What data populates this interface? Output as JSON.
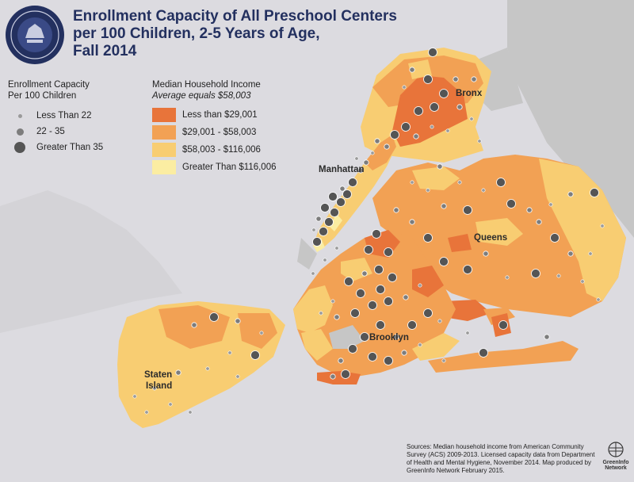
{
  "title_lines": [
    "Enrollment Capacity of All Preschool Centers",
    "per 100 Children, 2-5 Years of Age,",
    "Fall 2014"
  ],
  "capacity_legend": {
    "title_lines": [
      "Enrollment Capacity",
      "Per 100 Children"
    ],
    "items": [
      {
        "label": "Less Than 22",
        "size": "small"
      },
      {
        "label": "22 - 35",
        "size": "medium"
      },
      {
        "label": "Greater Than 35",
        "size": "large"
      }
    ]
  },
  "income_legend": {
    "title": "Median Household Income",
    "subtitle": "Average equals $58,003",
    "items": [
      {
        "label": "Less than $29,001",
        "color": "#e8743a"
      },
      {
        "label": "$29,001 - $58,003",
        "color": "#f2a154"
      },
      {
        "label": "$58,003 - $116,006",
        "color": "#f8cd72"
      },
      {
        "label": "Greater Than $116,006",
        "color": "#fbeda2"
      }
    ]
  },
  "places": {
    "bronx": "Bronx",
    "manhattan": "Manhattan",
    "queens": "Queens",
    "brooklyn": "Brooklyn",
    "staten_island_line1": "Staten",
    "staten_island_line2": "Island"
  },
  "source_text": "Sources: Median household income from American Community Survey (ACS) 2009-2013. Licensed capacity data from Department of Health and Mental Hygiene, November 2014. Map produced by GreenInfo Network February 2015.",
  "logo_lines": [
    "GreenInfo",
    "Network"
  ],
  "colors": {
    "water": "#dcdbe0",
    "land_outside": "#c6c6c6",
    "title": "#23305f",
    "dot": "#5d5d5d"
  }
}
